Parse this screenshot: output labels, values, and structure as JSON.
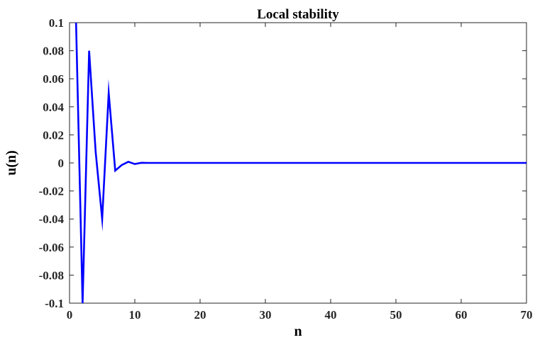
{
  "chart_data": {
    "type": "line",
    "title": "Local stability",
    "xlabel": "n",
    "ylabel": "u(n)",
    "xlim": [
      0,
      70
    ],
    "ylim": [
      -0.1,
      0.1
    ],
    "xticks": [
      0,
      10,
      20,
      30,
      40,
      50,
      60,
      70
    ],
    "xtick_labels": [
      "0",
      "10",
      "20",
      "30",
      "40",
      "50",
      "60",
      "70"
    ],
    "yticks": [
      0.1,
      0.08,
      0.06,
      0.04,
      0.02,
      0,
      -0.02,
      -0.04,
      -0.06,
      -0.08,
      -0.1
    ],
    "ytick_labels": [
      "0.1",
      "0.08",
      "0.06",
      "0.04",
      "0.02",
      "0",
      "-0.02",
      "-0.04",
      "-0.06",
      "-0.08",
      "-0.1"
    ],
    "grid": false,
    "series": [
      {
        "color": "#0000ff",
        "x": [
          1,
          2,
          3,
          4,
          5,
          6,
          7,
          8,
          9,
          10,
          11,
          12,
          13,
          14,
          15,
          16,
          17,
          18,
          19,
          20,
          21,
          22,
          23,
          24,
          25,
          26,
          27,
          28,
          29,
          30,
          31,
          32,
          33,
          34,
          35,
          36,
          37,
          38,
          39,
          40,
          41,
          42,
          43,
          44,
          45,
          46,
          47,
          48,
          49,
          50,
          51,
          52,
          53,
          54,
          55,
          56,
          57,
          58,
          59,
          60,
          61,
          62,
          63,
          64,
          65,
          66,
          67,
          68,
          69,
          70
        ],
        "values": [
          0.1,
          -0.1,
          0.08,
          0.008,
          -0.04,
          0.05,
          -0.0055,
          -0.0015,
          0.0008,
          -0.0008,
          0.0001,
          0.0,
          0.0,
          0.0,
          0.0,
          0.0,
          0.0,
          0.0,
          0.0,
          0.0,
          0.0,
          0.0,
          0.0,
          0.0,
          0.0,
          0.0,
          0.0,
          0.0,
          0.0,
          0.0,
          0.0,
          0.0,
          0.0,
          0.0,
          0.0,
          0.0,
          0.0,
          0.0,
          0.0,
          0.0,
          0.0,
          0.0,
          0.0,
          0.0,
          0.0,
          0.0,
          0.0,
          0.0,
          0.0,
          0.0,
          0.0,
          0.0,
          0.0,
          0.0,
          0.0,
          0.0,
          0.0,
          0.0,
          0.0,
          0.0,
          0.0,
          0.0,
          0.0,
          0.0,
          0.0,
          0.0,
          0.0,
          0.0,
          0.0,
          0.0
        ]
      }
    ]
  }
}
